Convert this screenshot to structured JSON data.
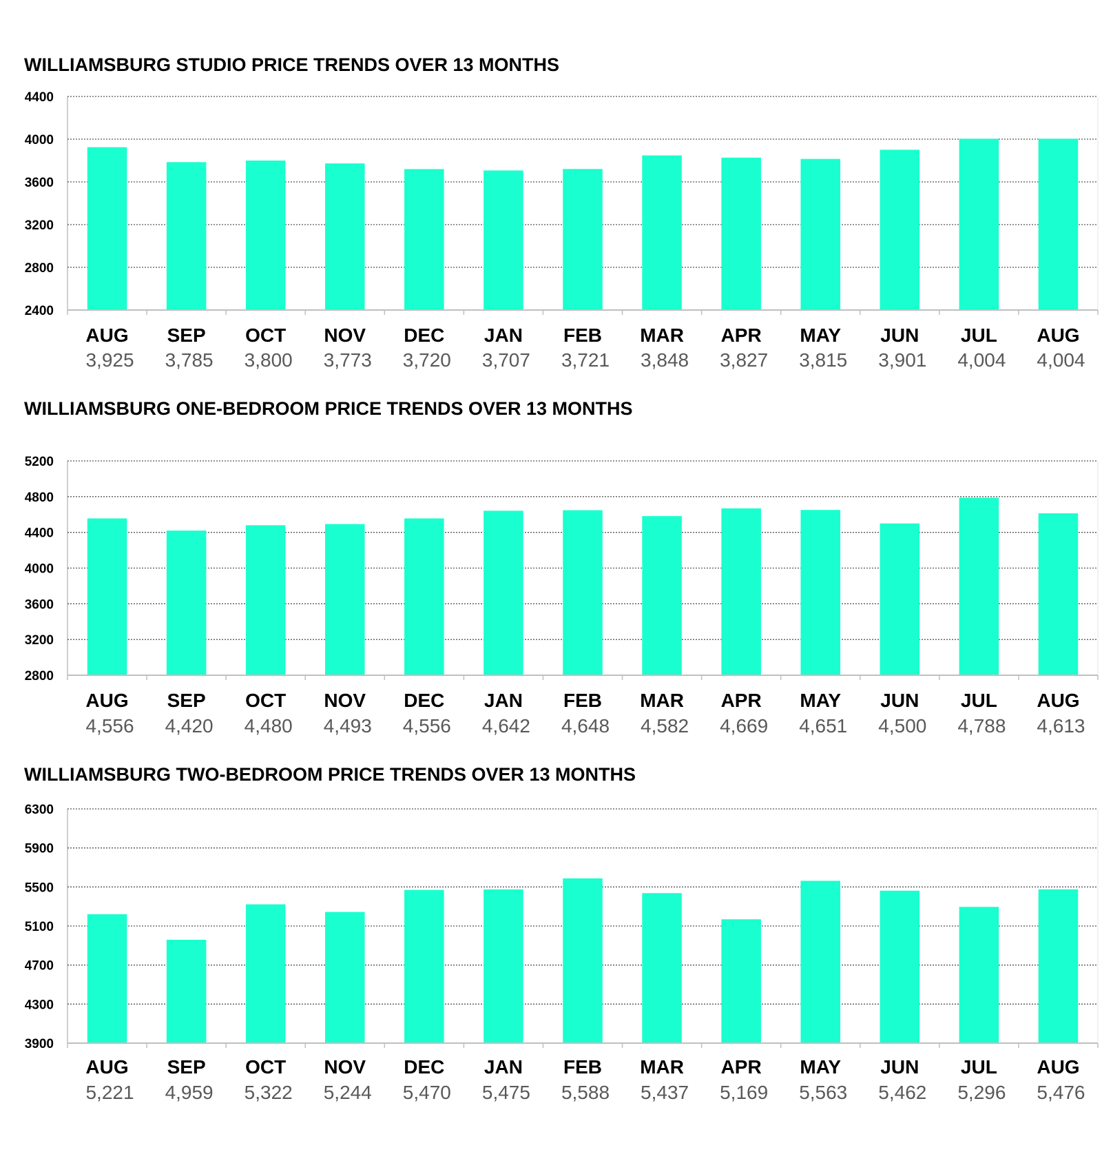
{
  "colors": {
    "bar": "#1affcf",
    "grid": "#555555",
    "axis": "#bfbfbf",
    "value_text": "#595959"
  },
  "chart_data": [
    {
      "type": "bar",
      "title": "WILLIAMSBURG STUDIO PRICE TRENDS OVER 13 MONTHS",
      "categories": [
        "AUG",
        "SEP",
        "OCT",
        "NOV",
        "DEC",
        "JAN",
        "FEB",
        "MAR",
        "APR",
        "MAY",
        "JUN",
        "JUL",
        "AUG"
      ],
      "values": [
        3925,
        3785,
        3800,
        3773,
        3720,
        3707,
        3721,
        3848,
        3827,
        3815,
        3901,
        4004,
        4004
      ],
      "value_labels": [
        "3,925",
        "3,785",
        "3,800",
        "3,773",
        "3,720",
        "3,707",
        "3,721",
        "3,848",
        "3,827",
        "3,815",
        "3,901",
        "4,004",
        "4,004"
      ],
      "ylim": [
        2400,
        4400
      ],
      "yticks": [
        "4400",
        "4000",
        "3600",
        "3200",
        "2800",
        "2400"
      ],
      "grid": true
    },
    {
      "type": "bar",
      "title": "WILLIAMSBURG ONE-BEDROOM PRICE TRENDS OVER 13 MONTHS",
      "categories": [
        "AUG",
        "SEP",
        "OCT",
        "NOV",
        "DEC",
        "JAN",
        "FEB",
        "MAR",
        "APR",
        "MAY",
        "JUN",
        "JUL",
        "AUG"
      ],
      "values": [
        4556,
        4420,
        4480,
        4493,
        4556,
        4642,
        4648,
        4582,
        4669,
        4651,
        4500,
        4788,
        4613
      ],
      "value_labels": [
        "4,556",
        "4,420",
        "4,480",
        "4,493",
        "4,556",
        "4,642",
        "4,648",
        "4,582",
        "4,669",
        "4,651",
        "4,500",
        "4,788",
        "4,613"
      ],
      "ylim": [
        2800,
        5200
      ],
      "yticks": [
        "5200",
        "4800",
        "4400",
        "4000",
        "3600",
        "3200",
        "2800"
      ],
      "grid": true
    },
    {
      "type": "bar",
      "title": "WILLIAMSBURG TWO-BEDROOM PRICE TRENDS OVER 13 MONTHS",
      "categories": [
        "AUG",
        "SEP",
        "OCT",
        "NOV",
        "DEC",
        "JAN",
        "FEB",
        "MAR",
        "APR",
        "MAY",
        "JUN",
        "JUL",
        "AUG"
      ],
      "values": [
        5221,
        4959,
        5322,
        5244,
        5470,
        5475,
        5588,
        5437,
        5169,
        5563,
        5462,
        5296,
        5476
      ],
      "value_labels": [
        "5,221",
        "4,959",
        "5,322",
        "5,244",
        "5,470",
        "5,475",
        "5,588",
        "5,437",
        "5,169",
        "5,563",
        "5,462",
        "5,296",
        "5,476"
      ],
      "ylim": [
        3900,
        6300
      ],
      "yticks": [
        "6300",
        "5900",
        "5500",
        "5100",
        "4700",
        "4300",
        "3900"
      ],
      "grid": true
    }
  ]
}
